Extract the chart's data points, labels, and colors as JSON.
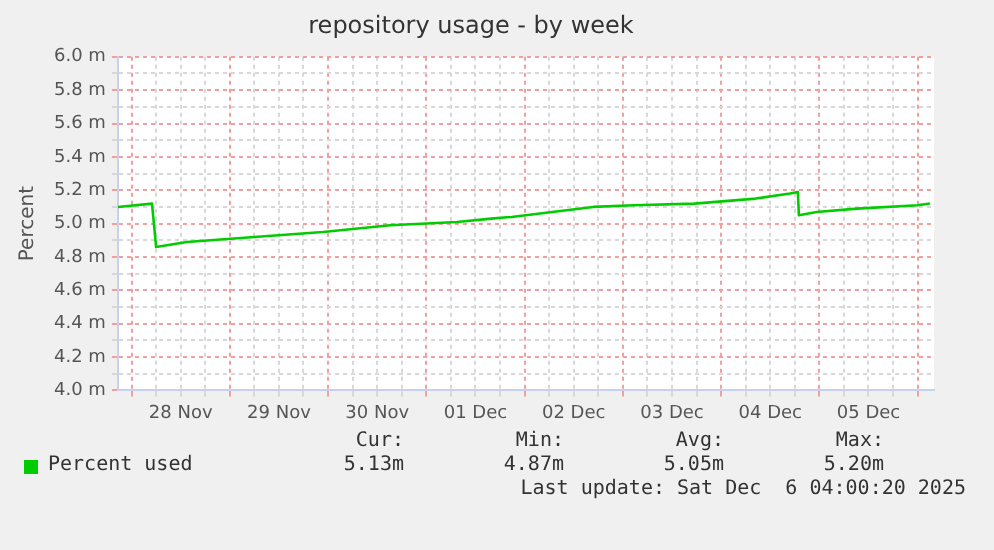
{
  "chart_data": {
    "type": "line",
    "title": "repository usage - by week",
    "ylabel": "Percent",
    "x": [
      "2025-11-27T20:40",
      "2025-11-28T05:00",
      "2025-11-28T06:00",
      "2025-11-28T13:30",
      "2025-11-29T06:00",
      "2025-11-29T22:45",
      "2025-11-30T15:10",
      "2025-12-01T07:30",
      "2025-12-01T15:50",
      "2025-12-01T20:50",
      "2025-12-02T06:45",
      "2025-12-02T16:45",
      "2025-12-03T02:40",
      "2025-12-03T17:30",
      "2025-12-04T08:25",
      "2025-12-04T16:50",
      "2025-12-04T18:45",
      "2025-12-04T19:00",
      "2025-12-04T23:20",
      "2025-12-05T09:10",
      "2025-12-06T00:00",
      "2025-12-06T03:00"
    ],
    "series": [
      {
        "name": "Percent used",
        "color": "#00cc00",
        "values": [
          5.1,
          5.12,
          4.86,
          4.89,
          4.92,
          4.95,
          4.99,
          5.01,
          5.03,
          5.04,
          5.07,
          5.1,
          5.11,
          5.12,
          5.15,
          5.18,
          5.19,
          5.05,
          5.07,
          5.09,
          5.11,
          5.12
        ]
      }
    ],
    "xlim": [
      "2025-11-27T20:40",
      "2025-12-06T04:00"
    ],
    "xticks": [
      {
        "value": "2025-11-28T00:00",
        "label": null
      },
      {
        "value": "2025-11-28T06:00",
        "label": null
      },
      {
        "value": "2025-11-28T12:00",
        "label": "28 Nov"
      },
      {
        "value": "2025-11-28T18:00",
        "label": null
      },
      {
        "value": "2025-11-29T00:00",
        "label": null
      },
      {
        "value": "2025-11-29T06:00",
        "label": null
      },
      {
        "value": "2025-11-29T12:00",
        "label": "29 Nov"
      },
      {
        "value": "2025-11-29T18:00",
        "label": null
      },
      {
        "value": "2025-11-30T00:00",
        "label": null
      },
      {
        "value": "2025-11-30T06:00",
        "label": null
      },
      {
        "value": "2025-11-30T12:00",
        "label": "30 Nov"
      },
      {
        "value": "2025-11-30T18:00",
        "label": null
      },
      {
        "value": "2025-12-01T00:00",
        "label": null
      },
      {
        "value": "2025-12-01T06:00",
        "label": null
      },
      {
        "value": "2025-12-01T12:00",
        "label": "01 Dec"
      },
      {
        "value": "2025-12-01T18:00",
        "label": null
      },
      {
        "value": "2025-12-02T00:00",
        "label": null
      },
      {
        "value": "2025-12-02T06:00",
        "label": null
      },
      {
        "value": "2025-12-02T12:00",
        "label": "02 Dec"
      },
      {
        "value": "2025-12-02T18:00",
        "label": null
      },
      {
        "value": "2025-12-03T00:00",
        "label": null
      },
      {
        "value": "2025-12-03T06:00",
        "label": null
      },
      {
        "value": "2025-12-03T12:00",
        "label": "03 Dec"
      },
      {
        "value": "2025-12-03T18:00",
        "label": null
      },
      {
        "value": "2025-12-04T00:00",
        "label": null
      },
      {
        "value": "2025-12-04T06:00",
        "label": null
      },
      {
        "value": "2025-12-04T12:00",
        "label": "04 Dec"
      },
      {
        "value": "2025-12-04T18:00",
        "label": null
      },
      {
        "value": "2025-12-05T00:00",
        "label": null
      },
      {
        "value": "2025-12-05T06:00",
        "label": null
      },
      {
        "value": "2025-12-05T12:00",
        "label": "05 Dec"
      },
      {
        "value": "2025-12-05T18:00",
        "label": null
      },
      {
        "value": "2025-12-06T00:00",
        "label": null
      }
    ],
    "ylim": [
      4,
      6
    ],
    "yticks": [
      {
        "value": 4,
        "label": "4.0 m"
      },
      {
        "value": 4.1,
        "label": null
      },
      {
        "value": 4.2,
        "label": "4.2 m"
      },
      {
        "value": 4.3,
        "label": null
      },
      {
        "value": 4.4,
        "label": "4.4 m"
      },
      {
        "value": 4.5,
        "label": null
      },
      {
        "value": 4.6,
        "label": "4.6 m"
      },
      {
        "value": 4.7,
        "label": null
      },
      {
        "value": 4.8,
        "label": "4.8 m"
      },
      {
        "value": 4.9,
        "label": null
      },
      {
        "value": 5,
        "label": "5.0 m"
      },
      {
        "value": 5.1,
        "label": null
      },
      {
        "value": 5.2,
        "label": "5.2 m"
      },
      {
        "value": 5.3,
        "label": null
      },
      {
        "value": 5.4,
        "label": "5.4 m"
      },
      {
        "value": 5.5,
        "label": null
      },
      {
        "value": 5.6,
        "label": "5.6 m"
      },
      {
        "value": 5.7,
        "label": null
      },
      {
        "value": 5.8,
        "label": "5.8 m"
      },
      {
        "value": 5.9,
        "label": null
      },
      {
        "value": 6,
        "label": "6.0 m"
      }
    ],
    "grid": true,
    "legend": "bottom left",
    "marker": "none",
    "line_style": "solid",
    "annotations": [
      "Cur:",
      "Min:",
      "Avg:",
      "Max:",
      "5.13m",
      "4.87m",
      "5.05m",
      "5.20m",
      "Last update: Sat Dec  6 04:00:20 2025"
    ]
  }
}
